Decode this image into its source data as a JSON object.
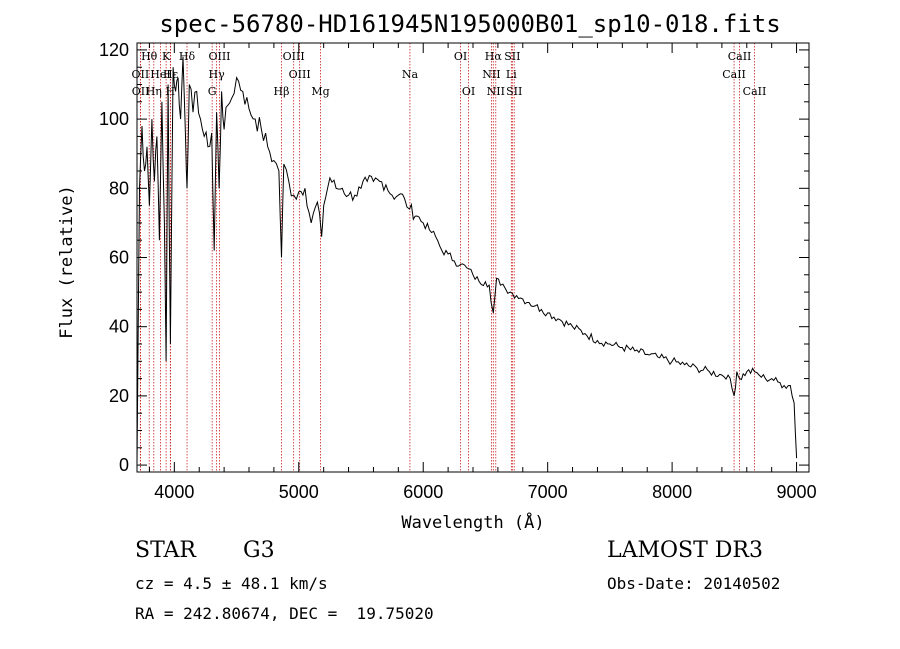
{
  "chart_data": {
    "type": "line",
    "title": "spec-56780-HD161945N195000B01_sp10-018.fits",
    "xlabel": "Wavelength (Å)",
    "ylabel": "Flux (relative)",
    "xlim": [
      3700,
      9100
    ],
    "ylim": [
      -2,
      122
    ],
    "xticks": [
      4000,
      5000,
      6000,
      7000,
      8000,
      9000
    ],
    "yticks": [
      0,
      20,
      40,
      60,
      80,
      100,
      120
    ],
    "spectrum": {
      "x": [
        3700,
        3720,
        3740,
        3760,
        3780,
        3800,
        3820,
        3840,
        3860,
        3880,
        3900,
        3920,
        3934,
        3950,
        3968,
        3990,
        4010,
        4030,
        4050,
        4070,
        4090,
        4102,
        4120,
        4150,
        4180,
        4210,
        4240,
        4270,
        4300,
        4320,
        4340,
        4360,
        4380,
        4400,
        4430,
        4460,
        4500,
        4550,
        4600,
        4650,
        4700,
        4750,
        4800,
        4840,
        4861,
        4880,
        4920,
        4960,
        5000,
        5050,
        5100,
        5150,
        5183,
        5200,
        5250,
        5300,
        5350,
        5400,
        5450,
        5500,
        5550,
        5600,
        5650,
        5700,
        5750,
        5800,
        5850,
        5890,
        5950,
        6000,
        6050,
        6100,
        6150,
        6200,
        6250,
        6300,
        6350,
        6400,
        6450,
        6500,
        6530,
        6563,
        6590,
        6620,
        6660,
        6700,
        6750,
        6800,
        6850,
        6900,
        6950,
        7000,
        7100,
        7200,
        7300,
        7400,
        7500,
        7600,
        7700,
        7800,
        7900,
        8000,
        8100,
        8200,
        8300,
        8400,
        8450,
        8498,
        8520,
        8542,
        8600,
        8662,
        8700,
        8750,
        8800,
        8850,
        8900,
        8950,
        8980,
        9000
      ],
      "y": [
        0,
        80,
        98,
        85,
        92,
        75,
        100,
        82,
        95,
        65,
        105,
        70,
        30,
        110,
        35,
        115,
        108,
        112,
        100,
        118,
        95,
        80,
        110,
        102,
        108,
        100,
        95,
        92,
        96,
        62,
        102,
        80,
        108,
        97,
        104,
        106,
        112,
        108,
        103,
        100,
        97,
        92,
        88,
        85,
        60,
        87,
        82,
        78,
        79,
        80,
        70,
        76,
        66,
        75,
        83,
        80,
        80,
        78,
        78,
        80,
        82,
        82,
        82,
        81,
        78,
        78,
        77,
        74,
        72,
        70,
        68,
        66,
        62,
        61,
        59,
        58,
        57,
        55,
        53,
        53,
        52,
        44,
        54,
        52,
        51,
        50,
        49,
        48,
        47,
        46,
        45,
        44,
        42,
        40,
        38,
        36,
        35,
        34,
        33,
        32,
        31,
        30,
        29,
        28,
        27,
        26,
        26,
        20,
        27,
        25,
        27,
        27,
        26,
        25,
        25,
        24,
        23,
        23,
        18,
        2
      ]
    },
    "lines": [
      {
        "label": "Hθ",
        "x": 3798,
        "row": 0
      },
      {
        "label": "OII",
        "x": 3727,
        "row": 1
      },
      {
        "label": "OII",
        "x": 3729,
        "row": 2
      },
      {
        "label": "K",
        "x": 3934,
        "row": 0
      },
      {
        "label": "HeI",
        "x": 3889,
        "row": 1
      },
      {
        "label": "Hη",
        "x": 3835,
        "row": 2
      },
      {
        "label": "H",
        "x": 3968,
        "row": 2
      },
      {
        "label": "Hδ",
        "x": 4102,
        "row": 0
      },
      {
        "label": "Hε",
        "x": 3970,
        "row": 1
      },
      {
        "label": "OIII",
        "x": 4363,
        "row": 0
      },
      {
        "label": "Hγ",
        "x": 4340,
        "row": 1
      },
      {
        "label": "G",
        "x": 4304,
        "row": 2
      },
      {
        "label": "OIII",
        "x": 4959,
        "row": 0
      },
      {
        "label": "OIII",
        "x": 5007,
        "row": 1
      },
      {
        "label": "Hβ",
        "x": 4861,
        "row": 2
      },
      {
        "label": "Mg",
        "x": 5175,
        "row": 2
      },
      {
        "label": "Na",
        "x": 5893,
        "row": 1
      },
      {
        "label": "OI",
        "x": 6300,
        "row": 0
      },
      {
        "label": "OI",
        "x": 6364,
        "row": 2
      },
      {
        "label": "Hα",
        "x": 6563,
        "row": 0
      },
      {
        "label": "SII",
        "x": 6716,
        "row": 0
      },
      {
        "label": "NII",
        "x": 6548,
        "row": 1
      },
      {
        "label": "Li",
        "x": 6708,
        "row": 1
      },
      {
        "label": "NII",
        "x": 6583,
        "row": 2
      },
      {
        "label": "SII",
        "x": 6731,
        "row": 2
      },
      {
        "label": "CaII",
        "x": 8542,
        "row": 0
      },
      {
        "label": "CaII",
        "x": 8498,
        "row": 1
      },
      {
        "label": "CaII",
        "x": 8662,
        "row": 2
      }
    ],
    "line_color": "#cc2222",
    "spectrum_color": "#000000"
  },
  "info": {
    "object_type": "STAR",
    "subclass": "G3",
    "survey": "LAMOST DR3",
    "cz": "cz = 4.5 ± 48.1 km/s",
    "obs_date": "Obs-Date: 20140502",
    "coords": "RA = 242.80674, DEC =  19.75020"
  }
}
